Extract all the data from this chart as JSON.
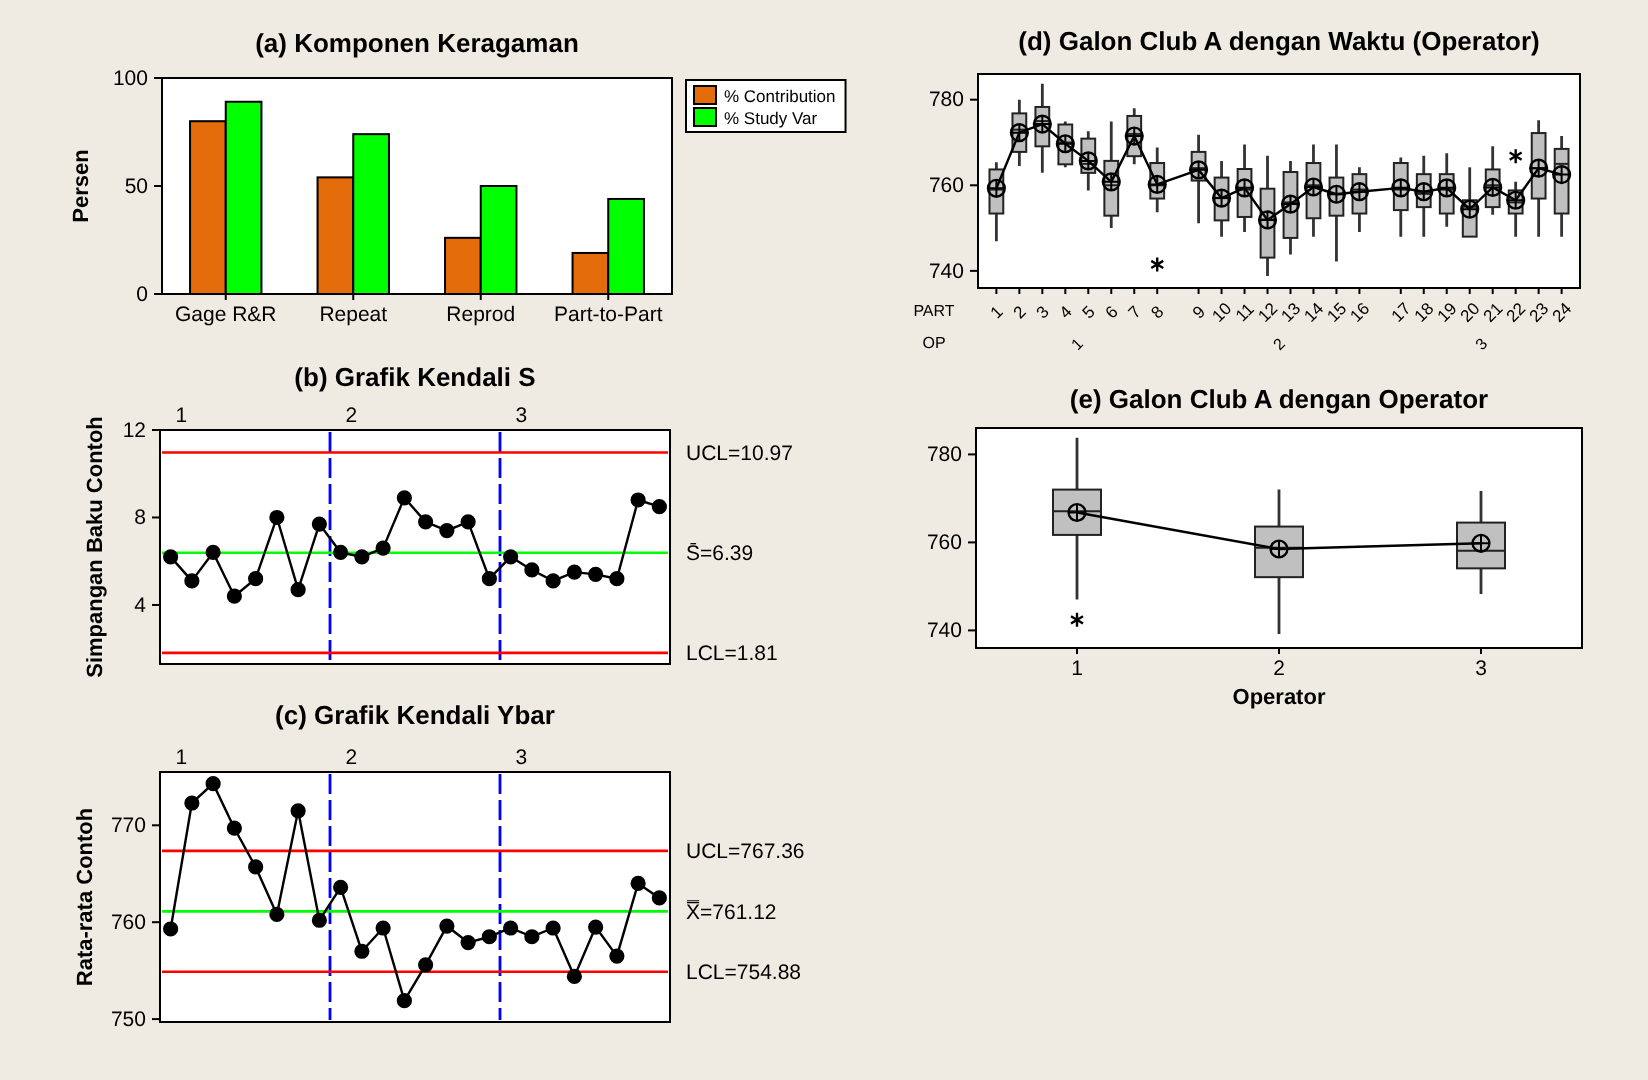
{
  "chart_data": [
    {
      "type": "bar",
      "title": "(a) Komponen Keragaman",
      "ylabel": "Persen",
      "categories": [
        "Gage R&R",
        "Repeat",
        "Reprod",
        "Part-to-Part"
      ],
      "series": [
        {
          "name": "% Contribution",
          "color": "#e46c0a",
          "values": [
            80,
            54,
            26,
            19
          ]
        },
        {
          "name": "% Study Var",
          "color": "#00ff00",
          "values": [
            89,
            74,
            50,
            44
          ]
        }
      ],
      "ylim": [
        0,
        100
      ],
      "yticks": [
        0,
        50,
        100
      ],
      "legend": "top right"
    },
    {
      "type": "line",
      "title": "(b) Grafik Kendali S",
      "ylabel": "Simpangan Baku Contoh",
      "categories": [
        null,
        null,
        null,
        null,
        null,
        null,
        null,
        null,
        null,
        null,
        null,
        null,
        null,
        null,
        null,
        null,
        null,
        null,
        null,
        null,
        null,
        null,
        null,
        null
      ],
      "values": [
        6.2,
        5.1,
        6.4,
        4.4,
        5.2,
        8.0,
        4.7,
        7.7,
        6.4,
        6.2,
        6.6,
        8.9,
        7.8,
        7.4,
        7.8,
        5.2,
        6.2,
        5.6,
        5.1,
        5.5,
        5.4,
        5.2,
        8.8,
        8.5
      ],
      "color": "#000000",
      "marker": "circle",
      "ylim": [
        1.3,
        12
      ],
      "yticks": [
        4,
        8,
        12
      ],
      "x2lim": [
        0.875,
        3.875
      ],
      "x2ticks": [
        1,
        2,
        3
      ],
      "ref_lines": [
        {
          "axis": "y",
          "value": 10.97,
          "label": "UCL=10.97",
          "color": "#ff0000"
        },
        {
          "axis": "y",
          "value": 6.39,
          "label": "S̄=6.39",
          "color": "#00ff00"
        },
        {
          "axis": "y",
          "value": 1.81,
          "label": "LCL=1.81",
          "color": "#ff0000"
        }
      ]
    },
    {
      "type": "line",
      "title": "(c) Grafik Kendali Ybar",
      "ylabel": "Rata-rata Contoh",
      "categories": [
        null,
        null,
        null,
        null,
        null,
        null,
        null,
        null,
        null,
        null,
        null,
        null,
        null,
        null,
        null,
        null,
        null,
        null,
        null,
        null,
        null,
        null,
        null,
        null
      ],
      "values": [
        759.3,
        772.3,
        774.3,
        769.7,
        765.7,
        760.8,
        771.5,
        760.2,
        763.6,
        757.0,
        759.4,
        751.9,
        755.6,
        759.6,
        757.9,
        758.5,
        759.4,
        758.5,
        759.4,
        754.4,
        759.5,
        756.5,
        764.0,
        762.5
      ],
      "color": "#000000",
      "marker": "circle",
      "ylim": [
        749.7,
        775.5
      ],
      "yticks": [
        750,
        760,
        770
      ],
      "x2lim": [
        0.875,
        3.875
      ],
      "x2ticks": [
        1,
        2,
        3
      ],
      "ref_lines": [
        {
          "axis": "y",
          "value": 767.36,
          "label": "UCL=767.36",
          "color": "#ff0000"
        },
        {
          "axis": "y",
          "value": 761.12,
          "label": "X̿=761.12",
          "color": "#00ff00"
        },
        {
          "axis": "y",
          "value": 754.88,
          "label": "LCL=754.88",
          "color": "#ff0000"
        }
      ]
    },
    {
      "type": "box",
      "title": "(d) Galon Club A dengan Waktu (Operator)",
      "categories": [
        "1",
        "2",
        "3",
        "4",
        "5",
        "6",
        "7",
        "8",
        "9",
        "10",
        "11",
        "12",
        "13",
        "14",
        "15",
        "16",
        "17",
        "18",
        "19",
        "20",
        "21",
        "22",
        "23",
        "24"
      ],
      "series": [
        {
          "type": "box",
          "color": "#c0c0c0",
          "boxes": [
            {
              "low": 746.9,
              "q1": 753.4,
              "median": 759,
              "q3": 763.7,
              "high": 765.4,
              "mean": 759.3
            },
            {
              "low": 764.5,
              "q1": 767.8,
              "median": 773,
              "q3": 776.8,
              "high": 780,
              "mean": 772.3
            },
            {
              "low": 762.9,
              "q1": 769.1,
              "median": 775,
              "q3": 778.3,
              "high": 783.7,
              "mean": 774.3
            },
            {
              "low": 764.2,
              "q1": 764.9,
              "median": 770,
              "q3": 774.2,
              "high": 774.9,
              "mean": 769.7
            },
            {
              "low": 758.8,
              "q1": 762.9,
              "median": 765,
              "q3": 770.9,
              "high": 772.6,
              "mean": 765.7
            },
            {
              "low": 750,
              "q1": 752.9,
              "median": 760,
              "q3": 765.7,
              "high": 774.9,
              "mean": 760.8
            },
            {
              "low": 764.9,
              "q1": 766.8,
              "median": 772,
              "q3": 776.2,
              "high": 778,
              "mean": 771.5
            },
            {
              "low": 753.7,
              "q1": 756.9,
              "median": 760,
              "q3": 765.2,
              "high": 768.8,
              "mean": 760.2,
              "outliers": [
                741.5
              ]
            },
            {
              "low": 751.1,
              "q1": 761.1,
              "median": 764,
              "q3": 767.8,
              "high": 771.8,
              "mean": 763.6
            },
            {
              "low": 748,
              "q1": 751.8,
              "median": 757,
              "q3": 761.8,
              "high": 765.7,
              "mean": 757.0
            },
            {
              "low": 749.1,
              "q1": 752.6,
              "median": 759,
              "q3": 763.8,
              "high": 769.5,
              "mean": 759.4
            },
            {
              "low": 738.8,
              "q1": 743.1,
              "median": 752,
              "q3": 759.2,
              "high": 766.9,
              "mean": 751.9
            },
            {
              "low": 743.8,
              "q1": 747.7,
              "median": 756,
              "q3": 763.1,
              "high": 765.7,
              "mean": 755.6
            },
            {
              "low": 748,
              "q1": 752.3,
              "median": 760,
              "q3": 765.2,
              "high": 769.5,
              "mean": 759.6
            },
            {
              "low": 742.2,
              "q1": 752.9,
              "median": 758,
              "q3": 761.8,
              "high": 769.5,
              "mean": 757.9
            },
            {
              "low": 749.1,
              "q1": 753.4,
              "median": 759,
              "q3": 762.6,
              "high": 764.2,
              "mean": 758.5
            },
            {
              "low": 748,
              "q1": 754.2,
              "median": 759,
              "q3": 765.2,
              "high": 766.5,
              "mean": 759.4
            },
            {
              "low": 748,
              "q1": 754.9,
              "median": 758,
              "q3": 762.6,
              "high": 766.9,
              "mean": 758.5
            },
            {
              "low": 750.3,
              "q1": 753.4,
              "median": 759,
              "q3": 762.6,
              "high": 767.5,
              "mean": 759.4
            },
            {
              "low": 748,
              "q1": 748,
              "median": 755,
              "q3": 756.5,
              "high": 764.2,
              "mean": 754.4
            },
            {
              "low": 753.1,
              "q1": 754.9,
              "median": 760,
              "q3": 763.7,
              "high": 769.1,
              "mean": 759.5
            },
            {
              "low": 748,
              "q1": 753.4,
              "median": 756,
              "q3": 758.8,
              "high": 760.8,
              "mean": 756.5,
              "outliers": [
                766.8
              ]
            },
            {
              "low": 748,
              "q1": 756.9,
              "median": 764,
              "q3": 772.2,
              "high": 775.2,
              "mean": 764.0
            },
            {
              "low": 748,
              "q1": 753.4,
              "median": 765,
              "q3": 768.5,
              "high": 771.5,
              "mean": 762.5
            }
          ]
        },
        {
          "type": "line",
          "color": "#000000",
          "values": [
            759.3,
            772.3,
            774.3,
            769.7,
            765.7,
            760.8,
            771.5,
            760.2,
            763.6,
            757.0,
            759.4,
            751.9,
            755.6,
            759.6,
            757.9,
            758.5,
            759.4,
            758.5,
            759.4,
            754.4,
            759.5,
            756.5,
            764.0,
            762.5
          ]
        }
      ],
      "ylim": [
        736,
        786
      ],
      "yticks": [
        740,
        760,
        780
      ],
      "annotations": [
        "PART",
        "OP",
        "1",
        "2",
        "3"
      ]
    },
    {
      "type": "box",
      "title": "(e) Galon Club A dengan Operator",
      "xlabel": "Operator",
      "categories": [
        "1",
        "2",
        "3"
      ],
      "series": [
        {
          "type": "box",
          "color": "#c0c0c0",
          "boxes": [
            {
              "low": 747,
              "q1": 761.7,
              "median": 767.1,
              "q3": 772,
              "high": 783.8,
              "outliers": [
                742.4
              ]
            },
            {
              "low": 739.2,
              "q1": 752.1,
              "median": 758.8,
              "q3": 763.6,
              "high": 772
            },
            {
              "low": 748.3,
              "q1": 754.1,
              "median": 758.1,
              "q3": 764.5,
              "high": 771.7
            }
          ]
        },
        {
          "type": "line",
          "color": "#000000",
          "values": [
            766.8,
            758.5,
            759.8
          ]
        }
      ],
      "ylim": [
        736,
        786
      ],
      "yticks": [
        740,
        760,
        780
      ],
      "marker": "circle"
    }
  ]
}
